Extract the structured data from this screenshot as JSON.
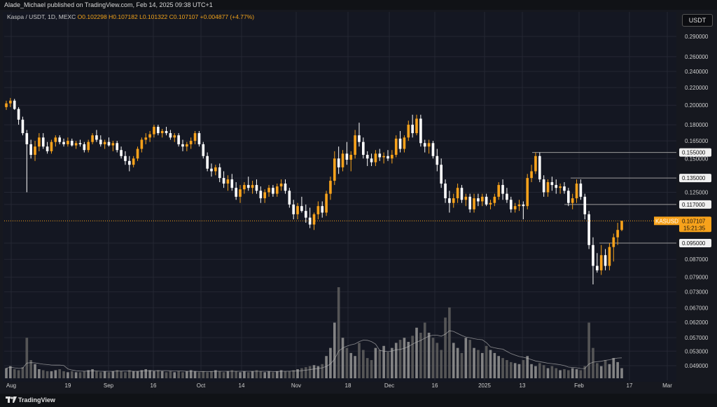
{
  "header": {
    "text": "Alade_Michael published on TradingView.com, Feb 14, 2025 09:38 UTC+1"
  },
  "legend": {
    "symbol": "Kaspa / USDT, 1D, MEXC",
    "open": "O0.102298",
    "high": "H0.107182",
    "low": "L0.101322",
    "close": "C0.107107",
    "change": "+0.004877 (+4.77%)"
  },
  "currency_button": "USDT",
  "footer": {
    "brand": "TradingView"
  },
  "colors": {
    "up": "#f7a21b",
    "down": "#ffffff",
    "grid": "#242733",
    "bg": "#141722",
    "level": "#9a9a9a",
    "current": "#f7a21b"
  },
  "chart_data": {
    "type": "candlestick",
    "symbol": "Kaspa / USDT",
    "interval": "1D",
    "exchange": "MEXC",
    "y_axis": {
      "scale": "log",
      "ticks": [
        "0.290000",
        "0.260000",
        "0.240000",
        "0.220000",
        "0.200000",
        "0.180000",
        "0.165000",
        "0.150000",
        "0.135000",
        "0.125000",
        "0.117000",
        "0.107107",
        "0.095000",
        "0.087000",
        "0.079000",
        "0.073000",
        "0.067000",
        "0.062000",
        "0.057000",
        "0.053000",
        "0.049000"
      ]
    },
    "x_axis": {
      "ticks": [
        "Aug",
        "19",
        "Sep",
        "16",
        "Oct",
        "14",
        "Nov",
        "18",
        "Dec",
        "16",
        "2025",
        "13",
        "Feb",
        "17",
        "Mar"
      ]
    },
    "levels": [
      {
        "price": 0.155,
        "label": "0.155000"
      },
      {
        "price": 0.135,
        "label": "0.135000"
      },
      {
        "price": 0.117,
        "label": "0.117000"
      },
      {
        "price": 0.095,
        "label": "0.095000"
      }
    ],
    "current": {
      "price": 0.107107,
      "symbol_label": "KASUSDT",
      "price_label": "0.107107",
      "countdown": "15:21:35"
    },
    "candles": [
      [
        0.198,
        0.205,
        0.195,
        0.202
      ],
      [
        0.202,
        0.208,
        0.198,
        0.205
      ],
      [
        0.205,
        0.207,
        0.195,
        0.196
      ],
      [
        0.196,
        0.198,
        0.18,
        0.185
      ],
      [
        0.185,
        0.188,
        0.17,
        0.172
      ],
      [
        0.172,
        0.175,
        0.125,
        0.162
      ],
      [
        0.162,
        0.166,
        0.15,
        0.153
      ],
      [
        0.153,
        0.165,
        0.148,
        0.16
      ],
      [
        0.16,
        0.172,
        0.156,
        0.168
      ],
      [
        0.168,
        0.172,
        0.158,
        0.16
      ],
      [
        0.16,
        0.164,
        0.154,
        0.156
      ],
      [
        0.156,
        0.166,
        0.154,
        0.164
      ],
      [
        0.164,
        0.17,
        0.16,
        0.168
      ],
      [
        0.168,
        0.17,
        0.162,
        0.164
      ],
      [
        0.164,
        0.167,
        0.16,
        0.162
      ],
      [
        0.162,
        0.168,
        0.16,
        0.165
      ],
      [
        0.165,
        0.167,
        0.16,
        0.161
      ],
      [
        0.161,
        0.165,
        0.158,
        0.163
      ],
      [
        0.163,
        0.166,
        0.16,
        0.162
      ],
      [
        0.162,
        0.164,
        0.155,
        0.157
      ],
      [
        0.157,
        0.166,
        0.155,
        0.164
      ],
      [
        0.164,
        0.172,
        0.162,
        0.17
      ],
      [
        0.17,
        0.175,
        0.164,
        0.166
      ],
      [
        0.166,
        0.17,
        0.16,
        0.162
      ],
      [
        0.162,
        0.166,
        0.158,
        0.164
      ],
      [
        0.164,
        0.168,
        0.16,
        0.161
      ],
      [
        0.161,
        0.165,
        0.156,
        0.163
      ],
      [
        0.163,
        0.165,
        0.155,
        0.157
      ],
      [
        0.157,
        0.16,
        0.15,
        0.152
      ],
      [
        0.152,
        0.156,
        0.145,
        0.148
      ],
      [
        0.148,
        0.152,
        0.14,
        0.145
      ],
      [
        0.145,
        0.152,
        0.143,
        0.15
      ],
      [
        0.15,
        0.16,
        0.148,
        0.158
      ],
      [
        0.158,
        0.168,
        0.155,
        0.166
      ],
      [
        0.166,
        0.172,
        0.162,
        0.168
      ],
      [
        0.168,
        0.174,
        0.164,
        0.171
      ],
      [
        0.171,
        0.18,
        0.168,
        0.178
      ],
      [
        0.178,
        0.18,
        0.17,
        0.172
      ],
      [
        0.172,
        0.176,
        0.168,
        0.174
      ],
      [
        0.174,
        0.178,
        0.17,
        0.172
      ],
      [
        0.172,
        0.175,
        0.166,
        0.168
      ],
      [
        0.168,
        0.172,
        0.164,
        0.17
      ],
      [
        0.17,
        0.172,
        0.16,
        0.162
      ],
      [
        0.162,
        0.166,
        0.156,
        0.16
      ],
      [
        0.16,
        0.164,
        0.156,
        0.162
      ],
      [
        0.162,
        0.168,
        0.158,
        0.165
      ],
      [
        0.165,
        0.174,
        0.162,
        0.172
      ],
      [
        0.172,
        0.174,
        0.16,
        0.162
      ],
      [
        0.162,
        0.164,
        0.15,
        0.152
      ],
      [
        0.152,
        0.155,
        0.14,
        0.142
      ],
      [
        0.142,
        0.146,
        0.136,
        0.14
      ],
      [
        0.14,
        0.145,
        0.137,
        0.143
      ],
      [
        0.143,
        0.146,
        0.132,
        0.135
      ],
      [
        0.135,
        0.14,
        0.128,
        0.131
      ],
      [
        0.131,
        0.137,
        0.126,
        0.134
      ],
      [
        0.134,
        0.138,
        0.126,
        0.128
      ],
      [
        0.128,
        0.132,
        0.12,
        0.122
      ],
      [
        0.122,
        0.13,
        0.118,
        0.127
      ],
      [
        0.127,
        0.132,
        0.124,
        0.13
      ],
      [
        0.13,
        0.136,
        0.126,
        0.128
      ],
      [
        0.128,
        0.133,
        0.124,
        0.13
      ],
      [
        0.13,
        0.134,
        0.124,
        0.126
      ],
      [
        0.126,
        0.129,
        0.118,
        0.121
      ],
      [
        0.121,
        0.127,
        0.118,
        0.125
      ],
      [
        0.125,
        0.13,
        0.122,
        0.128
      ],
      [
        0.128,
        0.13,
        0.122,
        0.124
      ],
      [
        0.124,
        0.131,
        0.122,
        0.129
      ],
      [
        0.129,
        0.134,
        0.126,
        0.131
      ],
      [
        0.131,
        0.134,
        0.124,
        0.126
      ],
      [
        0.126,
        0.128,
        0.115,
        0.117
      ],
      [
        0.117,
        0.12,
        0.108,
        0.111
      ],
      [
        0.111,
        0.118,
        0.108,
        0.116
      ],
      [
        0.116,
        0.122,
        0.112,
        0.113
      ],
      [
        0.113,
        0.117,
        0.106,
        0.109
      ],
      [
        0.109,
        0.115,
        0.103,
        0.105
      ],
      [
        0.105,
        0.112,
        0.102,
        0.111
      ],
      [
        0.111,
        0.119,
        0.108,
        0.116
      ],
      [
        0.116,
        0.119,
        0.109,
        0.112
      ],
      [
        0.112,
        0.126,
        0.11,
        0.124
      ],
      [
        0.124,
        0.136,
        0.12,
        0.133
      ],
      [
        0.133,
        0.156,
        0.13,
        0.15
      ],
      [
        0.15,
        0.16,
        0.138,
        0.143
      ],
      [
        0.143,
        0.157,
        0.14,
        0.154
      ],
      [
        0.154,
        0.164,
        0.145,
        0.149
      ],
      [
        0.149,
        0.156,
        0.14,
        0.153
      ],
      [
        0.153,
        0.175,
        0.15,
        0.17
      ],
      [
        0.17,
        0.182,
        0.16,
        0.164
      ],
      [
        0.164,
        0.168,
        0.15,
        0.153
      ],
      [
        0.153,
        0.156,
        0.144,
        0.15
      ],
      [
        0.15,
        0.154,
        0.144,
        0.147
      ],
      [
        0.147,
        0.157,
        0.144,
        0.154
      ],
      [
        0.154,
        0.158,
        0.148,
        0.151
      ],
      [
        0.151,
        0.155,
        0.146,
        0.152
      ],
      [
        0.152,
        0.157,
        0.148,
        0.15
      ],
      [
        0.15,
        0.157,
        0.146,
        0.153
      ],
      [
        0.153,
        0.17,
        0.151,
        0.167
      ],
      [
        0.167,
        0.174,
        0.155,
        0.158
      ],
      [
        0.158,
        0.17,
        0.155,
        0.168
      ],
      [
        0.168,
        0.184,
        0.165,
        0.18
      ],
      [
        0.18,
        0.19,
        0.168,
        0.172
      ],
      [
        0.172,
        0.19,
        0.17,
        0.186
      ],
      [
        0.186,
        0.19,
        0.16,
        0.163
      ],
      [
        0.163,
        0.166,
        0.155,
        0.16
      ],
      [
        0.16,
        0.166,
        0.154,
        0.163
      ],
      [
        0.163,
        0.165,
        0.15,
        0.152
      ],
      [
        0.152,
        0.158,
        0.14,
        0.145
      ],
      [
        0.145,
        0.15,
        0.128,
        0.131
      ],
      [
        0.131,
        0.134,
        0.118,
        0.121
      ],
      [
        0.121,
        0.126,
        0.112,
        0.118
      ],
      [
        0.118,
        0.124,
        0.115,
        0.121
      ],
      [
        0.121,
        0.131,
        0.118,
        0.128
      ],
      [
        0.128,
        0.13,
        0.118,
        0.12
      ],
      [
        0.12,
        0.124,
        0.116,
        0.122
      ],
      [
        0.122,
        0.124,
        0.112,
        0.114
      ],
      [
        0.114,
        0.124,
        0.112,
        0.121
      ],
      [
        0.121,
        0.124,
        0.116,
        0.119
      ],
      [
        0.119,
        0.124,
        0.116,
        0.122
      ],
      [
        0.122,
        0.124,
        0.116,
        0.117
      ],
      [
        0.117,
        0.12,
        0.114,
        0.118
      ],
      [
        0.118,
        0.124,
        0.116,
        0.122
      ],
      [
        0.122,
        0.132,
        0.12,
        0.13
      ],
      [
        0.13,
        0.134,
        0.12,
        0.124
      ],
      [
        0.124,
        0.128,
        0.118,
        0.12
      ],
      [
        0.12,
        0.122,
        0.112,
        0.114
      ],
      [
        0.114,
        0.118,
        0.112,
        0.116
      ],
      [
        0.116,
        0.12,
        0.113,
        0.117
      ],
      [
        0.117,
        0.119,
        0.108,
        0.116
      ],
      [
        0.116,
        0.138,
        0.114,
        0.135
      ],
      [
        0.135,
        0.145,
        0.132,
        0.14
      ],
      [
        0.14,
        0.155,
        0.138,
        0.152
      ],
      [
        0.152,
        0.155,
        0.132,
        0.134
      ],
      [
        0.134,
        0.137,
        0.122,
        0.125
      ],
      [
        0.125,
        0.134,
        0.122,
        0.132
      ],
      [
        0.132,
        0.136,
        0.126,
        0.13
      ],
      [
        0.13,
        0.134,
        0.124,
        0.128
      ],
      [
        0.128,
        0.131,
        0.124,
        0.129
      ],
      [
        0.129,
        0.132,
        0.124,
        0.126
      ],
      [
        0.126,
        0.128,
        0.116,
        0.118
      ],
      [
        0.118,
        0.124,
        0.114,
        0.121
      ],
      [
        0.121,
        0.134,
        0.118,
        0.131
      ],
      [
        0.131,
        0.134,
        0.12,
        0.122
      ],
      [
        0.122,
        0.124,
        0.108,
        0.111
      ],
      [
        0.111,
        0.113,
        0.092,
        0.094
      ],
      [
        0.094,
        0.098,
        0.076,
        0.084
      ],
      [
        0.084,
        0.09,
        0.081,
        0.082
      ],
      [
        0.082,
        0.094,
        0.08,
        0.089
      ],
      [
        0.089,
        0.092,
        0.082,
        0.084
      ],
      [
        0.084,
        0.095,
        0.082,
        0.093
      ],
      [
        0.093,
        0.1,
        0.086,
        0.098
      ],
      [
        0.098,
        0.106,
        0.094,
        0.102
      ],
      [
        0.102,
        0.1072,
        0.1013,
        0.1071
      ]
    ],
    "volume": [
      10,
      12,
      9,
      8,
      11,
      40,
      18,
      14,
      9,
      8,
      7,
      7,
      8,
      9,
      7,
      6,
      7,
      6,
      6,
      7,
      8,
      9,
      7,
      6,
      7,
      6,
      7,
      8,
      7,
      6,
      8,
      7,
      7,
      8,
      9,
      8,
      7,
      8,
      7,
      6,
      7,
      6,
      7,
      6,
      7,
      8,
      7,
      6,
      7,
      6,
      7,
      8,
      7,
      6,
      7,
      8,
      7,
      6,
      7,
      6,
      7,
      8,
      7,
      6,
      7,
      6,
      7,
      8,
      7,
      7,
      8,
      9,
      10,
      11,
      12,
      13,
      12,
      14,
      22,
      30,
      55,
      90,
      40,
      30,
      25,
      22,
      35,
      28,
      20,
      18,
      30,
      28,
      32,
      26,
      30,
      35,
      38,
      40,
      36,
      42,
      50,
      45,
      55,
      45,
      40,
      35,
      28,
      60,
      70,
      35,
      30,
      25,
      40,
      38,
      30,
      28,
      25,
      32,
      28,
      25,
      22,
      20,
      18,
      16,
      15,
      14,
      18,
      22,
      14,
      12,
      15,
      13,
      10,
      12,
      10,
      8,
      9,
      8,
      10,
      9,
      8,
      12,
      55,
      30,
      15,
      12,
      18,
      14,
      20,
      16,
      10
    ]
  }
}
